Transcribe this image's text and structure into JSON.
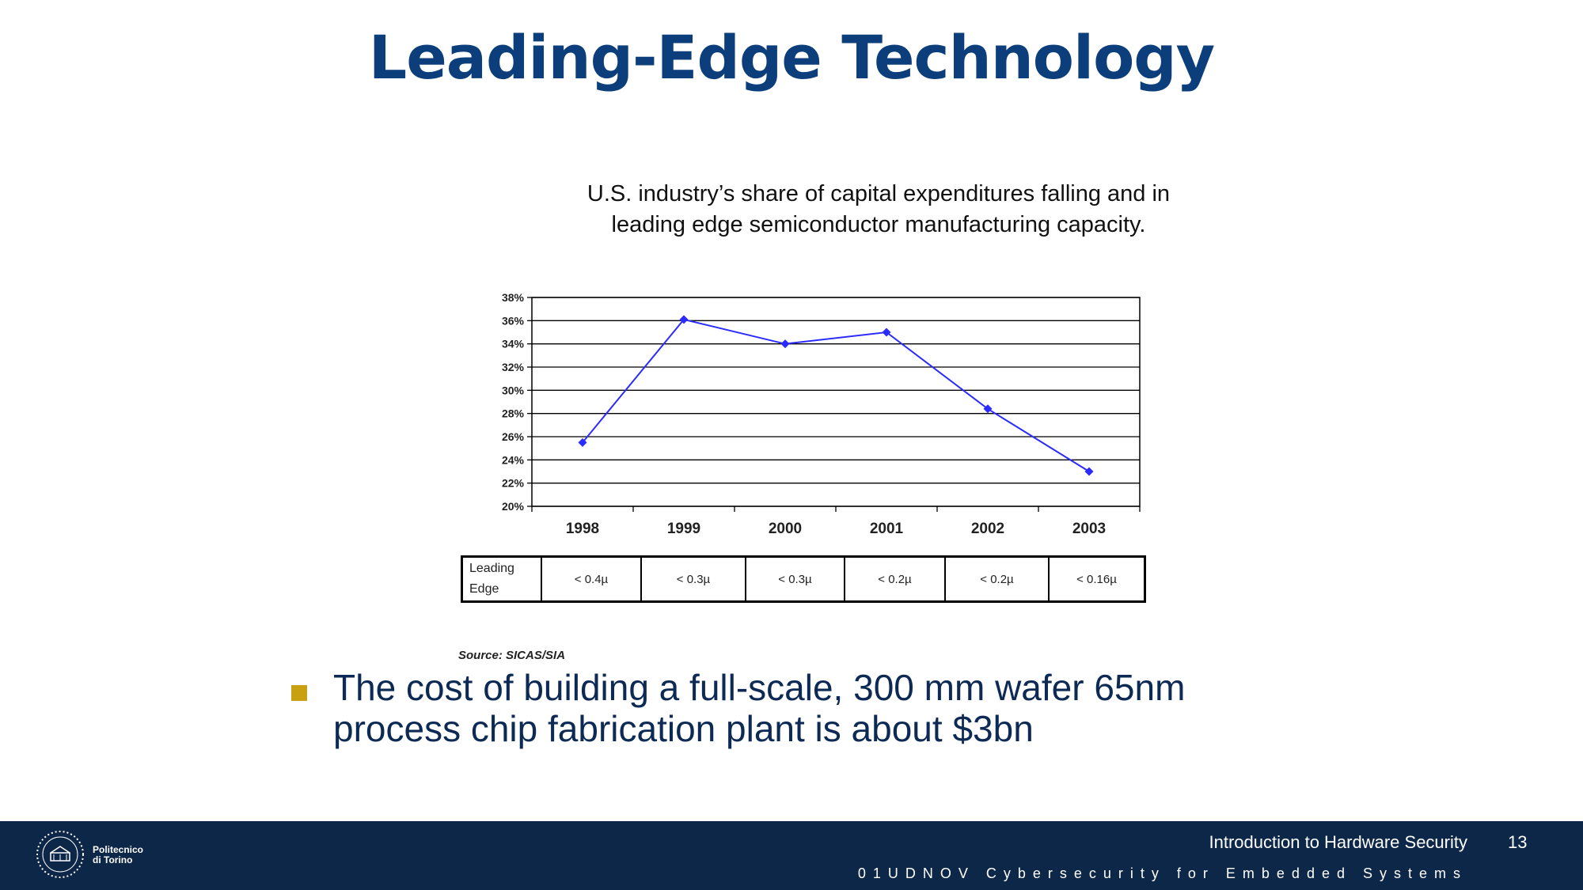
{
  "slide": {
    "title": "Leading-Edge Technology",
    "source": "Source: SICAS/SIA",
    "bullet": {
      "line1": "The cost of building a full-scale, 300 mm wafer 65nm",
      "line2": "process chip fabrication plant is about $3bn"
    }
  },
  "chart_data": {
    "type": "line",
    "title_lines": [
      "U.S. industry’s share of capital expenditures falling and in",
      "leading edge semiconductor manufacturing capacity."
    ],
    "x": [
      "1998",
      "1999",
      "2000",
      "2001",
      "2002",
      "2003"
    ],
    "series": [
      {
        "values": [
          25.5,
          36.1,
          34.0,
          35.0,
          28.4,
          23.0
        ]
      }
    ],
    "yticks": [
      "20%",
      "22%",
      "24%",
      "26%",
      "28%",
      "30%",
      "32%",
      "34%",
      "36%",
      "38%"
    ],
    "ylim": [
      20,
      38
    ],
    "grid": true,
    "colors": {
      "line": "#2b2bff",
      "marker": "#2b2bff"
    },
    "table": {
      "row_label_line1": "Leading",
      "row_label_line2": "Edge",
      "values": [
        "< 0.4µ",
        "< 0.3µ",
        "< 0.3µ",
        "< 0.2µ",
        "< 0.2µ",
        "< 0.16µ"
      ]
    }
  },
  "footer": {
    "course": "Introduction to Hardware Security",
    "page": "13",
    "subtitle": "01UDNOV Cybersecurity for Embedded Systems",
    "logo_text": "Politecnico di Torino"
  }
}
